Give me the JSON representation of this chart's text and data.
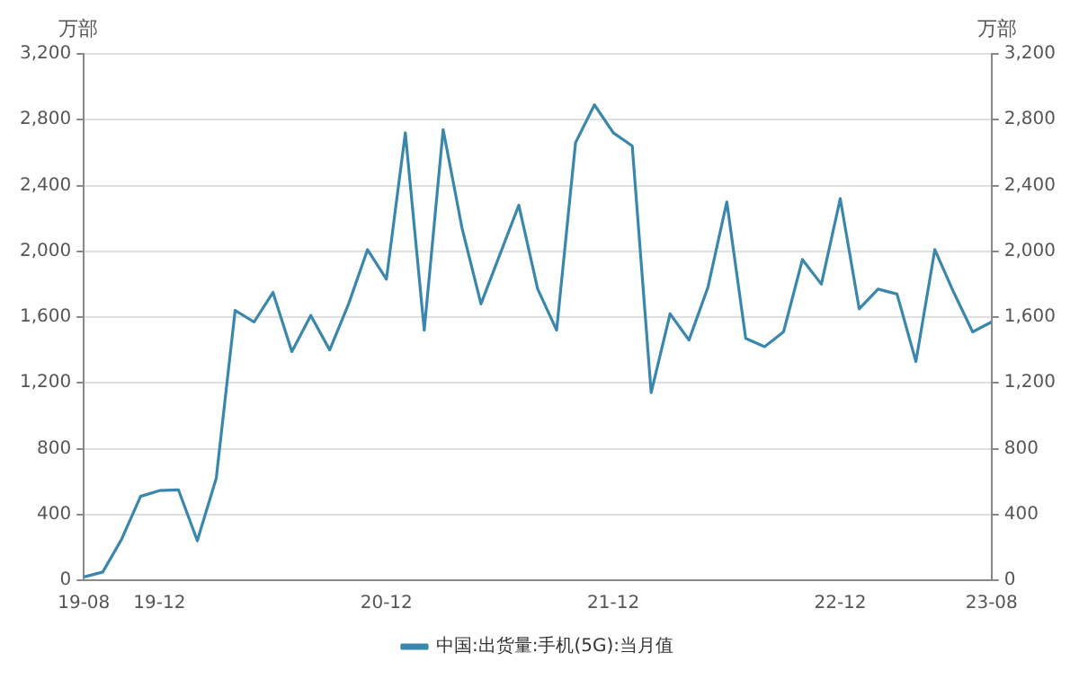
{
  "chart_data": {
    "type": "line",
    "ylabel": "万部",
    "y2label": "万部",
    "categories": [
      "19-08",
      null,
      null,
      null,
      "19-12",
      null,
      null,
      null,
      null,
      null,
      null,
      null,
      null,
      null,
      null,
      null,
      "20-12",
      null,
      null,
      null,
      null,
      null,
      null,
      null,
      null,
      null,
      null,
      null,
      "21-12",
      null,
      null,
      null,
      null,
      null,
      null,
      null,
      null,
      null,
      null,
      null,
      "22-12",
      null,
      null,
      null,
      null,
      null,
      null,
      null,
      "23-08"
    ],
    "series": [
      {
        "name": "中国:出货量:手机(5G):当月值",
        "color": "#3a87ad",
        "values": [
          20,
          50,
          250,
          510,
          545,
          550,
          240,
          620,
          1640,
          1570,
          1750,
          1390,
          1610,
          1400,
          1680,
          2010,
          1830,
          2720,
          1520,
          2740,
          2140,
          1680,
          1980,
          2280,
          1770,
          1520,
          2660,
          2890,
          2720,
          2640,
          1140,
          1620,
          1460,
          1780,
          2300,
          1470,
          1420,
          1510,
          1950,
          1800,
          2320,
          1650,
          1770,
          1740,
          1330,
          2010,
          1750,
          1510,
          1570
        ]
      }
    ],
    "ylim": [
      0,
      3200
    ],
    "yticks": [
      {
        "value": 0,
        "label": "0"
      },
      {
        "value": 400,
        "label": "400"
      },
      {
        "value": 800,
        "label": "800"
      },
      {
        "value": 1200,
        "label": "1,200"
      },
      {
        "value": 1600,
        "label": "1,600"
      },
      {
        "value": 2000,
        "label": "2,000"
      },
      {
        "value": 2400,
        "label": "2,400"
      },
      {
        "value": 2800,
        "label": "2,800"
      },
      {
        "value": 3200,
        "label": "3,200"
      }
    ],
    "y2lim": [
      0,
      3200
    ],
    "y2ticks": [
      {
        "value": 0,
        "label": "0"
      },
      {
        "value": 400,
        "label": "400"
      },
      {
        "value": 800,
        "label": "800"
      },
      {
        "value": 1200,
        "label": "1,200"
      },
      {
        "value": 1600,
        "label": "1,600"
      },
      {
        "value": 2000,
        "label": "2,000"
      },
      {
        "value": 2400,
        "label": "2,400"
      },
      {
        "value": 2800,
        "label": "2,800"
      },
      {
        "value": 3200,
        "label": "3,200"
      }
    ],
    "grid": "y",
    "legend": "bottom",
    "marker": "none",
    "line_style": "solid"
  }
}
